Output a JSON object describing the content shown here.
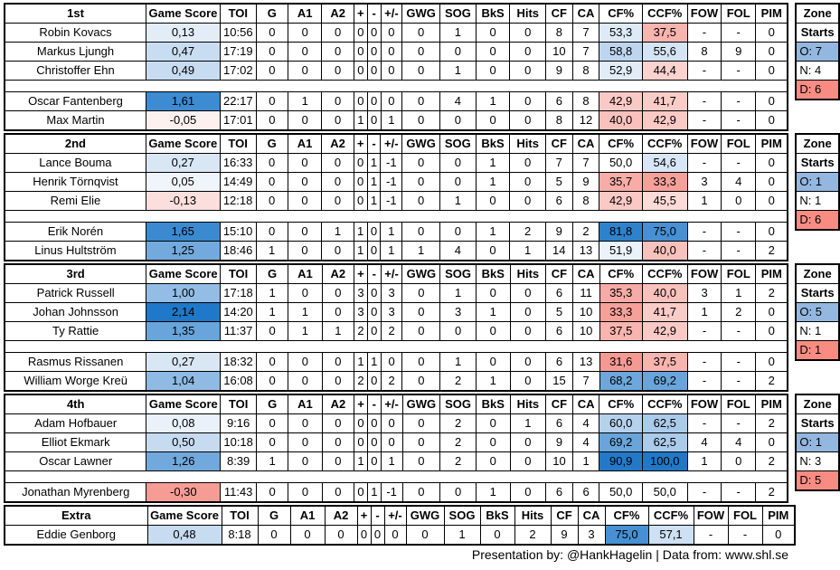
{
  "columns": [
    "Game Score",
    "TOI",
    "G",
    "A1",
    "A2",
    "+",
    "-",
    "+/-",
    "GWG",
    "SOG",
    "BkS",
    "Hits",
    "CF",
    "CA",
    "CF%",
    "CCF%",
    "FOW",
    "FOL",
    "PIM"
  ],
  "zone_header": [
    "Zone",
    "Starts"
  ],
  "footer": "Presentation by: @HankHagelin | Data from: www.shl.se",
  "colors": {
    "grid": "#000000",
    "zone_offensive": "#94B7E0",
    "zone_neutral": "#FFFFFF",
    "zone_defensive": "#F98C82"
  },
  "sections": [
    {
      "label": "1st",
      "zone": [
        {
          "text": "O: 7",
          "bg": "#94B7E0"
        },
        {
          "text": "N: 4",
          "bg": "#FFFFFF"
        },
        {
          "text": "D: 6",
          "bg": "#F98C82"
        }
      ],
      "rows": [
        {
          "name": "Robin Kovacs",
          "gs": "0,13",
          "gs_bg": "#E3EDF8",
          "toi": "10:56",
          "g": "0",
          "a1": "0",
          "a2": "0",
          "plus": "0",
          "minus": "0",
          "pm": "0",
          "gwg": "0",
          "sog": "1",
          "bks": "0",
          "hits": "0",
          "cf": "8",
          "ca": "7",
          "cfp": "53,3",
          "cfp_bg": "#DEEAF6",
          "ccfp": "37,5",
          "ccfp_bg": "#F8B4AF",
          "fow": "-",
          "fol": "-",
          "pim": "0"
        },
        {
          "name": "Markus Ljungh",
          "gs": "0,47",
          "gs_bg": "#C9DDF2",
          "toi": "17:19",
          "g": "0",
          "a1": "0",
          "a2": "0",
          "plus": "0",
          "minus": "0",
          "pm": "0",
          "gwg": "0",
          "sog": "0",
          "bks": "0",
          "hits": "0",
          "cf": "10",
          "ca": "7",
          "cfp": "58,8",
          "cfp_bg": "#BDD6EE",
          "ccfp": "55,6",
          "ccfp_bg": "#D4E4F4",
          "fow": "8",
          "fol": "9",
          "pim": "0"
        },
        {
          "name": "Christoffer Ehn",
          "gs": "0,49",
          "gs_bg": "#C8DCF1",
          "toi": "17:02",
          "g": "0",
          "a1": "0",
          "a2": "0",
          "plus": "0",
          "minus": "0",
          "pm": "0",
          "gwg": "0",
          "sog": "1",
          "bks": "0",
          "hits": "0",
          "cf": "9",
          "ca": "8",
          "cfp": "52,9",
          "cfp_bg": "#E1ECF7",
          "ccfp": "44,4",
          "ccfp_bg": "#FBD2CE",
          "fow": "-",
          "fol": "-",
          "pim": "0"
        },
        {
          "blank": true
        },
        {
          "name": "Oscar Fantenberg",
          "gs": "1,61",
          "gs_bg": "#3D8BD1",
          "toi": "22:17",
          "g": "0",
          "a1": "1",
          "a2": "0",
          "plus": "0",
          "minus": "0",
          "pm": "0",
          "gwg": "0",
          "sog": "4",
          "bks": "1",
          "hits": "0",
          "cf": "6",
          "ca": "8",
          "cfp": "42,9",
          "cfp_bg": "#FAC9C5",
          "ccfp": "41,7",
          "ccfp_bg": "#FACCC8",
          "fow": "-",
          "fol": "-",
          "pim": "0"
        },
        {
          "name": "Max Martin",
          "gs": "-0,05",
          "gs_bg": "#FDF1EF",
          "toi": "17:01",
          "g": "0",
          "a1": "0",
          "a2": "0",
          "plus": "1",
          "minus": "0",
          "pm": "1",
          "gwg": "0",
          "sog": "0",
          "bks": "0",
          "hits": "0",
          "cf": "8",
          "ca": "12",
          "cfp": "40,0",
          "cfp_bg": "#F9C1BC",
          "ccfp": "42,9",
          "ccfp_bg": "#FAC9C5",
          "fow": "-",
          "fol": "-",
          "pim": "0"
        }
      ]
    },
    {
      "label": "2nd",
      "zone": [
        {
          "text": "O: 1",
          "bg": "#94B7E0"
        },
        {
          "text": "N: 1",
          "bg": "#FFFFFF"
        },
        {
          "text": "D: 6",
          "bg": "#F98C82"
        }
      ],
      "rows": [
        {
          "name": "Lance Bouma",
          "gs": "0,27",
          "gs_bg": "#D9E7F5",
          "toi": "16:33",
          "g": "0",
          "a1": "0",
          "a2": "0",
          "plus": "0",
          "minus": "1",
          "pm": "-1",
          "gwg": "0",
          "sog": "0",
          "bks": "1",
          "hits": "0",
          "cf": "7",
          "ca": "7",
          "cfp": "50,0",
          "ccfp": "54,6",
          "ccfp_bg": "#D8E6F5",
          "fow": "-",
          "fol": "-",
          "pim": "0"
        },
        {
          "name": "Henrik Törnqvist",
          "gs": "0,05",
          "gs_bg": "#F0F5FC",
          "toi": "14:49",
          "g": "0",
          "a1": "0",
          "a2": "0",
          "plus": "0",
          "minus": "1",
          "pm": "-1",
          "gwg": "0",
          "sog": "0",
          "bks": "1",
          "hits": "0",
          "cf": "5",
          "ca": "9",
          "cfp": "35,7",
          "cfp_bg": "#F7ACA7",
          "ccfp": "33,3",
          "ccfp_bg": "#F6A09A",
          "fow": "3",
          "fol": "4",
          "pim": "0"
        },
        {
          "name": "Remi Elie",
          "gs": "-0,13",
          "gs_bg": "#FBDFDC",
          "toi": "12:18",
          "g": "0",
          "a1": "0",
          "a2": "0",
          "plus": "0",
          "minus": "1",
          "pm": "-1",
          "gwg": "0",
          "sog": "1",
          "bks": "0",
          "hits": "0",
          "cf": "6",
          "ca": "8",
          "cfp": "42,9",
          "cfp_bg": "#FAC9C5",
          "ccfp": "45,5",
          "ccfp_bg": "#FCDAD7",
          "fow": "1",
          "fol": "0",
          "pim": "0"
        },
        {
          "blank": true
        },
        {
          "name": "Erik Norén",
          "gs": "1,65",
          "gs_bg": "#3B8AD0",
          "toi": "15:10",
          "g": "0",
          "a1": "0",
          "a2": "1",
          "plus": "1",
          "minus": "0",
          "pm": "1",
          "gwg": "0",
          "sog": "0",
          "bks": "1",
          "hits": "2",
          "cf": "9",
          "ca": "2",
          "cfp": "81,8",
          "cfp_bg": "#2E82CC",
          "ccfp": "75,0",
          "ccfp_bg": "#4690D3",
          "fow": "-",
          "fol": "-",
          "pim": "0"
        },
        {
          "name": "Linus Hultström",
          "gs": "1,25",
          "gs_bg": "#73AADD",
          "toi": "18:46",
          "g": "1",
          "a1": "0",
          "a2": "0",
          "plus": "1",
          "minus": "0",
          "pm": "1",
          "gwg": "1",
          "sog": "4",
          "bks": "0",
          "hits": "1",
          "cf": "14",
          "ca": "13",
          "cfp": "51,9",
          "cfp_bg": "#EAF2FA",
          "ccfp": "40,0",
          "ccfp_bg": "#F9C1BC",
          "fow": "-",
          "fol": "-",
          "pim": "2"
        }
      ]
    },
    {
      "label": "3rd",
      "zone": [
        {
          "text": "O: 5",
          "bg": "#94B7E0"
        },
        {
          "text": "N: 1",
          "bg": "#FFFFFF"
        },
        {
          "text": "D: 1",
          "bg": "#F98C82"
        }
      ],
      "rows": [
        {
          "name": "Patrick Russell",
          "gs": "1,00",
          "gs_bg": "#93BDE4",
          "toi": "17:18",
          "g": "1",
          "a1": "0",
          "a2": "0",
          "plus": "3",
          "minus": "0",
          "pm": "3",
          "gwg": "0",
          "sog": "1",
          "bks": "0",
          "hits": "0",
          "cf": "6",
          "ca": "11",
          "cfp": "35,3",
          "cfp_bg": "#F7ABA6",
          "ccfp": "40,0",
          "ccfp_bg": "#F9C1BC",
          "fow": "3",
          "fol": "1",
          "pim": "2"
        },
        {
          "name": "Johan Johnsson",
          "gs": "2,14",
          "gs_bg": "#1F78C8",
          "toi": "14:20",
          "g": "1",
          "a1": "1",
          "a2": "0",
          "plus": "3",
          "minus": "0",
          "pm": "3",
          "gwg": "0",
          "sog": "3",
          "bks": "1",
          "hits": "0",
          "cf": "5",
          "ca": "10",
          "cfp": "33,3",
          "cfp_bg": "#F6A09A",
          "ccfp": "41,7",
          "ccfp_bg": "#FACCC8",
          "fow": "1",
          "fol": "2",
          "pim": "0"
        },
        {
          "name": "Ty Rattie",
          "gs": "1,35",
          "gs_bg": "#69A4DA",
          "toi": "11:37",
          "g": "0",
          "a1": "1",
          "a2": "1",
          "plus": "2",
          "minus": "0",
          "pm": "2",
          "gwg": "0",
          "sog": "0",
          "bks": "0",
          "hits": "0",
          "cf": "6",
          "ca": "10",
          "cfp": "37,5",
          "cfp_bg": "#F8B4AF",
          "ccfp": "42,9",
          "ccfp_bg": "#FAC9C5",
          "fow": "-",
          "fol": "-",
          "pim": "0"
        },
        {
          "blank": true
        },
        {
          "name": "Rasmus Rissanen",
          "gs": "0,27",
          "gs_bg": "#D9E7F5",
          "toi": "18:32",
          "g": "0",
          "a1": "0",
          "a2": "0",
          "plus": "1",
          "minus": "1",
          "pm": "0",
          "gwg": "0",
          "sog": "1",
          "bks": "0",
          "hits": "0",
          "cf": "6",
          "ca": "13",
          "cfp": "31,6",
          "cfp_bg": "#F59A93",
          "ccfp": "37,5",
          "ccfp_bg": "#F8B4AF",
          "fow": "-",
          "fol": "-",
          "pim": "0"
        },
        {
          "name": "William Worge Kreü",
          "gs": "1,04",
          "gs_bg": "#8FBAE3",
          "toi": "16:08",
          "g": "0",
          "a1": "0",
          "a2": "0",
          "plus": "2",
          "minus": "0",
          "pm": "2",
          "gwg": "0",
          "sog": "2",
          "bks": "1",
          "hits": "0",
          "cf": "15",
          "ca": "7",
          "cfp": "68,2",
          "cfp_bg": "#6DA7DB",
          "ccfp": "69,2",
          "ccfp_bg": "#69A5DA",
          "fow": "-",
          "fol": "-",
          "pim": "2"
        }
      ]
    },
    {
      "label": "4th",
      "zone": [
        {
          "text": "O: 1",
          "bg": "#94B7E0"
        },
        {
          "text": "N: 3",
          "bg": "#FFFFFF"
        },
        {
          "text": "D: 5",
          "bg": "#F98C82"
        }
      ],
      "rows": [
        {
          "name": "Adam Hofbauer",
          "gs": "0,08",
          "gs_bg": "#EAF1FA",
          "toi": "9:16",
          "g": "0",
          "a1": "0",
          "a2": "0",
          "plus": "0",
          "minus": "0",
          "pm": "0",
          "gwg": "0",
          "sog": "2",
          "bks": "0",
          "hits": "1",
          "cf": "6",
          "ca": "4",
          "cfp": "60,0",
          "cfp_bg": "#B5D1EC",
          "ccfp": "62,5",
          "ccfp_bg": "#ABCBEA",
          "fow": "-",
          "fol": "-",
          "pim": "2"
        },
        {
          "name": "Elliot Ekmark",
          "gs": "0,50",
          "gs_bg": "#C6DBF0",
          "toi": "10:18",
          "g": "0",
          "a1": "0",
          "a2": "0",
          "plus": "0",
          "minus": "0",
          "pm": "0",
          "gwg": "0",
          "sog": "2",
          "bks": "0",
          "hits": "0",
          "cf": "9",
          "ca": "4",
          "cfp": "69,2",
          "cfp_bg": "#69A5DA",
          "ccfp": "62,5",
          "ccfp_bg": "#ABCBEA",
          "fow": "4",
          "fol": "4",
          "pim": "0"
        },
        {
          "name": "Oscar Lawner",
          "gs": "1,26",
          "gs_bg": "#72A9DC",
          "toi": "8:39",
          "g": "1",
          "a1": "0",
          "a2": "0",
          "plus": "1",
          "minus": "0",
          "pm": "1",
          "gwg": "0",
          "sog": "2",
          "bks": "0",
          "hits": "0",
          "cf": "10",
          "ca": "1",
          "cfp": "90,9",
          "cfp_bg": "#2379C8",
          "ccfp": "100,0",
          "ccfp_bg": "#1F78C8",
          "fow": "1",
          "fol": "0",
          "pim": "2"
        },
        {
          "blank": true
        },
        {
          "name": "Jonathan Myrenberg",
          "gs": "-0,30",
          "gs_bg": "#F79C95",
          "toi": "11:43",
          "g": "0",
          "a1": "0",
          "a2": "0",
          "plus": "0",
          "minus": "1",
          "pm": "-1",
          "gwg": "0",
          "sog": "0",
          "bks": "1",
          "hits": "0",
          "cf": "6",
          "ca": "6",
          "cfp": "50,0",
          "ccfp": "50,0",
          "fow": "-",
          "fol": "-",
          "pim": "2"
        }
      ]
    },
    {
      "label": "Extra",
      "zone": null,
      "rows": [
        {
          "name": "Eddie Genborg",
          "gs": "0,48",
          "gs_bg": "#C8DCF1",
          "toi": "8:18",
          "g": "0",
          "a1": "0",
          "a2": "0",
          "plus": "0",
          "minus": "0",
          "pm": "0",
          "gwg": "0",
          "sog": "1",
          "bks": "0",
          "hits": "2",
          "cf": "9",
          "ca": "3",
          "cfp": "75,0",
          "cfp_bg": "#4690D3",
          "ccfp": "57,1",
          "ccfp_bg": "#CEE0F3",
          "fow": "-",
          "fol": "-",
          "pim": "0"
        }
      ]
    }
  ]
}
